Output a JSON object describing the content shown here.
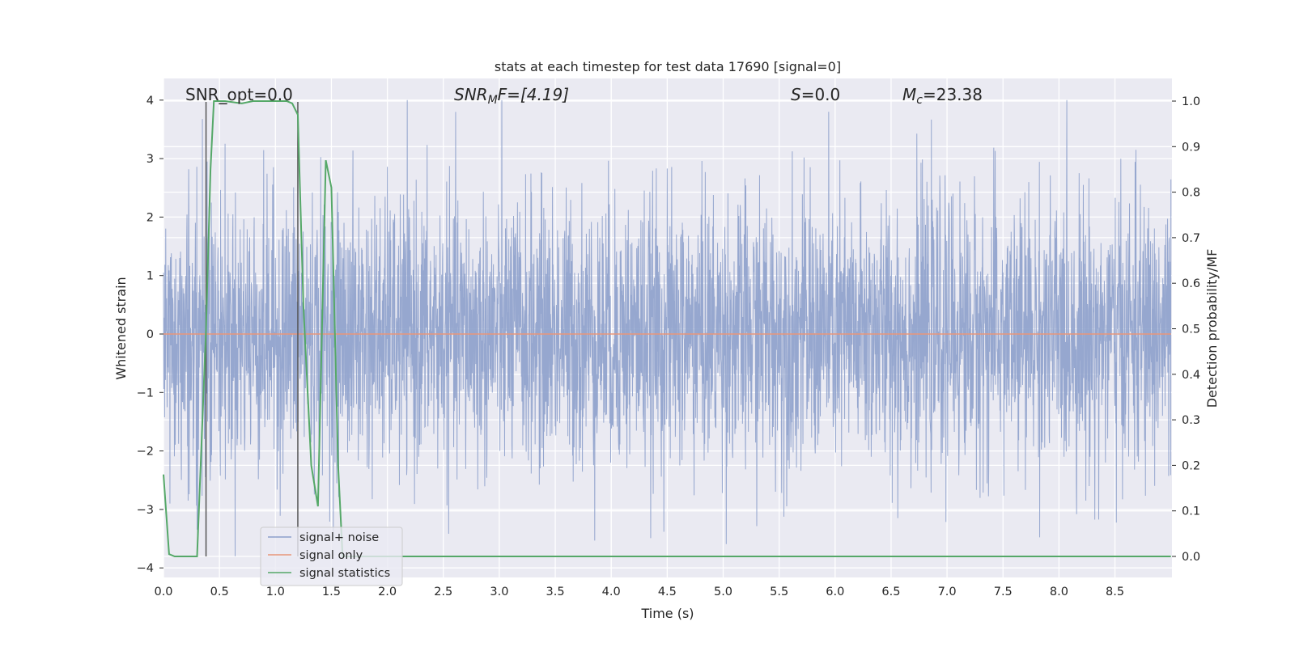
{
  "chart_data": {
    "type": "line",
    "title": "stats at each timestep for test data 17690 [signal=0]",
    "xlabel": "Time (s)",
    "ylabel": "Whitened strain",
    "y2label": "Detection probability/MF",
    "xlim": [
      0.0,
      9.0
    ],
    "ylim": [
      -4.15,
      4.4
    ],
    "y2lim": [
      -0.047,
      1.047
    ],
    "x_ticks": [
      "0.0",
      "0.5",
      "1.0",
      "1.5",
      "2.0",
      "2.5",
      "3.0",
      "3.5",
      "4.0",
      "4.5",
      "5.0",
      "5.5",
      "6.0",
      "6.5",
      "7.0",
      "7.5",
      "8.0",
      "8.5"
    ],
    "y_ticks": [
      "4",
      "3",
      "2",
      "1",
      "0",
      "−1",
      "−2",
      "−3",
      "−4"
    ],
    "y2_ticks": [
      "1.0",
      "0.9",
      "0.8",
      "0.7",
      "0.6",
      "0.5",
      "0.4",
      "0.3",
      "0.2",
      "0.1",
      "0.0"
    ],
    "grid": true,
    "legend_position": "lower-left",
    "annotations": {
      "snr_opt": "SNR_opt=0.0",
      "snr_mf_base": "SNR",
      "snr_mf_sub": "M",
      "snr_mf_rest": "F=[4.19]",
      "s_var": "S",
      "s_rest": "=0.0",
      "mc_var": "M",
      "mc_sub": "c",
      "mc_rest": "=23.38"
    },
    "series": [
      {
        "name": "signal+ noise",
        "color": "#8da0cb",
        "description_values": "white noise, roughly symmetric around 0, envelope about ±3 with peaks to ~4",
        "envelope": {
          "max": 4.0,
          "min": -3.8
        }
      },
      {
        "name": "signal only",
        "color": "#e8967a",
        "x": [
          0.0,
          9.0
        ],
        "y": [
          0.0,
          0.0
        ]
      },
      {
        "name": "signal statistics",
        "color": "#55a868",
        "axis": "right",
        "x": [
          0.0,
          0.05,
          0.1,
          0.2,
          0.3,
          0.38,
          0.42,
          0.45,
          0.55,
          0.7,
          0.8,
          0.9,
          1.0,
          1.1,
          1.15,
          1.2,
          1.25,
          1.32,
          1.38,
          1.45,
          1.5,
          1.56,
          1.6,
          2.0,
          3.0,
          4.0,
          5.0,
          6.0,
          7.0,
          8.0,
          9.0
        ],
        "y": [
          0.18,
          0.005,
          0.0,
          0.0,
          0.0,
          0.5,
          0.85,
          1.0,
          1.0,
          0.995,
          1.0,
          1.0,
          1.0,
          1.0,
          0.995,
          0.97,
          0.55,
          0.2,
          0.11,
          0.87,
          0.81,
          0.2,
          0.0,
          0.0,
          0.0,
          0.0,
          0.0,
          0.0,
          0.0,
          0.0,
          0.0
        ]
      }
    ],
    "vertical_markers": [
      0.38,
      1.2
    ]
  },
  "legend": {
    "items": [
      {
        "label": "signal+ noise",
        "color": "#8da0cb"
      },
      {
        "label": "signal only",
        "color": "#e8967a"
      },
      {
        "label": "signal statistics",
        "color": "#55a868"
      }
    ]
  }
}
